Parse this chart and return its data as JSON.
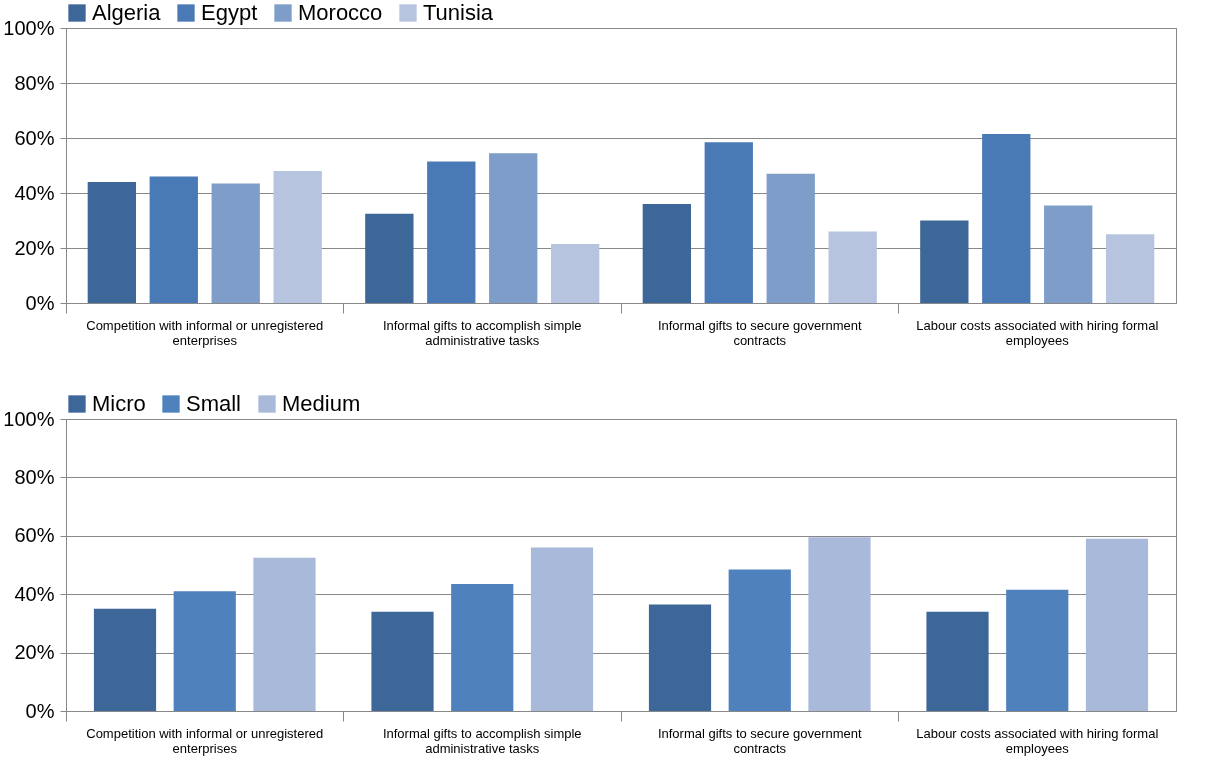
{
  "chart_data": [
    {
      "type": "bar",
      "categories": [
        "Competition with informal or unregistered enterprises",
        "Informal gifts to accomplish simple administrative tasks",
        "Informal gifts to secure government contracts",
        "Labour costs associated with hiring formal employees"
      ],
      "series": [
        {
          "name": "Algeria",
          "color": "#3d6699",
          "values": [
            44,
            32.5,
            36,
            30
          ]
        },
        {
          "name": "Egypt",
          "color": "#4a7ab5",
          "values": [
            46,
            51.5,
            58.5,
            61.5
          ]
        },
        {
          "name": "Morocco",
          "color": "#7f9dc9",
          "values": [
            43.5,
            54.5,
            47,
            35.5
          ]
        },
        {
          "name": "Tunisia",
          "color": "#b6c4df",
          "values": [
            48,
            21.5,
            26,
            25
          ]
        }
      ],
      "ylim": [
        0,
        100
      ],
      "yticks": [
        {
          "value": 0,
          "label": "0%"
        },
        {
          "value": 20,
          "label": "20%"
        },
        {
          "value": 40,
          "label": "40%"
        },
        {
          "value": 60,
          "label": "60%"
        },
        {
          "value": 80,
          "label": "80%"
        },
        {
          "value": 100,
          "label": "100%"
        }
      ],
      "grid": "y",
      "legend": "top"
    },
    {
      "type": "bar",
      "categories": [
        "Competition with informal or unregistered enterprises",
        "Informal gifts to accomplish simple administrative tasks",
        "Informal gifts to secure government contracts",
        "Labour costs associated with hiring formal employees"
      ],
      "series": [
        {
          "name": "Micro",
          "color": "#3d6699",
          "values": [
            35,
            34,
            36.5,
            34
          ]
        },
        {
          "name": "Small",
          "color": "#4f81bd",
          "values": [
            41,
            43.5,
            48.5,
            41.5
          ]
        },
        {
          "name": "Medium",
          "color": "#a9b9d9",
          "values": [
            52.5,
            56,
            59.5,
            59
          ]
        }
      ],
      "ylim": [
        0,
        100
      ],
      "yticks": [
        {
          "value": 0,
          "label": "0%"
        },
        {
          "value": 20,
          "label": "20%"
        },
        {
          "value": 40,
          "label": "40%"
        },
        {
          "value": 60,
          "label": "60%"
        },
        {
          "value": 80,
          "label": "80%"
        },
        {
          "value": 100,
          "label": "100%"
        }
      ],
      "grid": "y",
      "legend": "top"
    }
  ]
}
